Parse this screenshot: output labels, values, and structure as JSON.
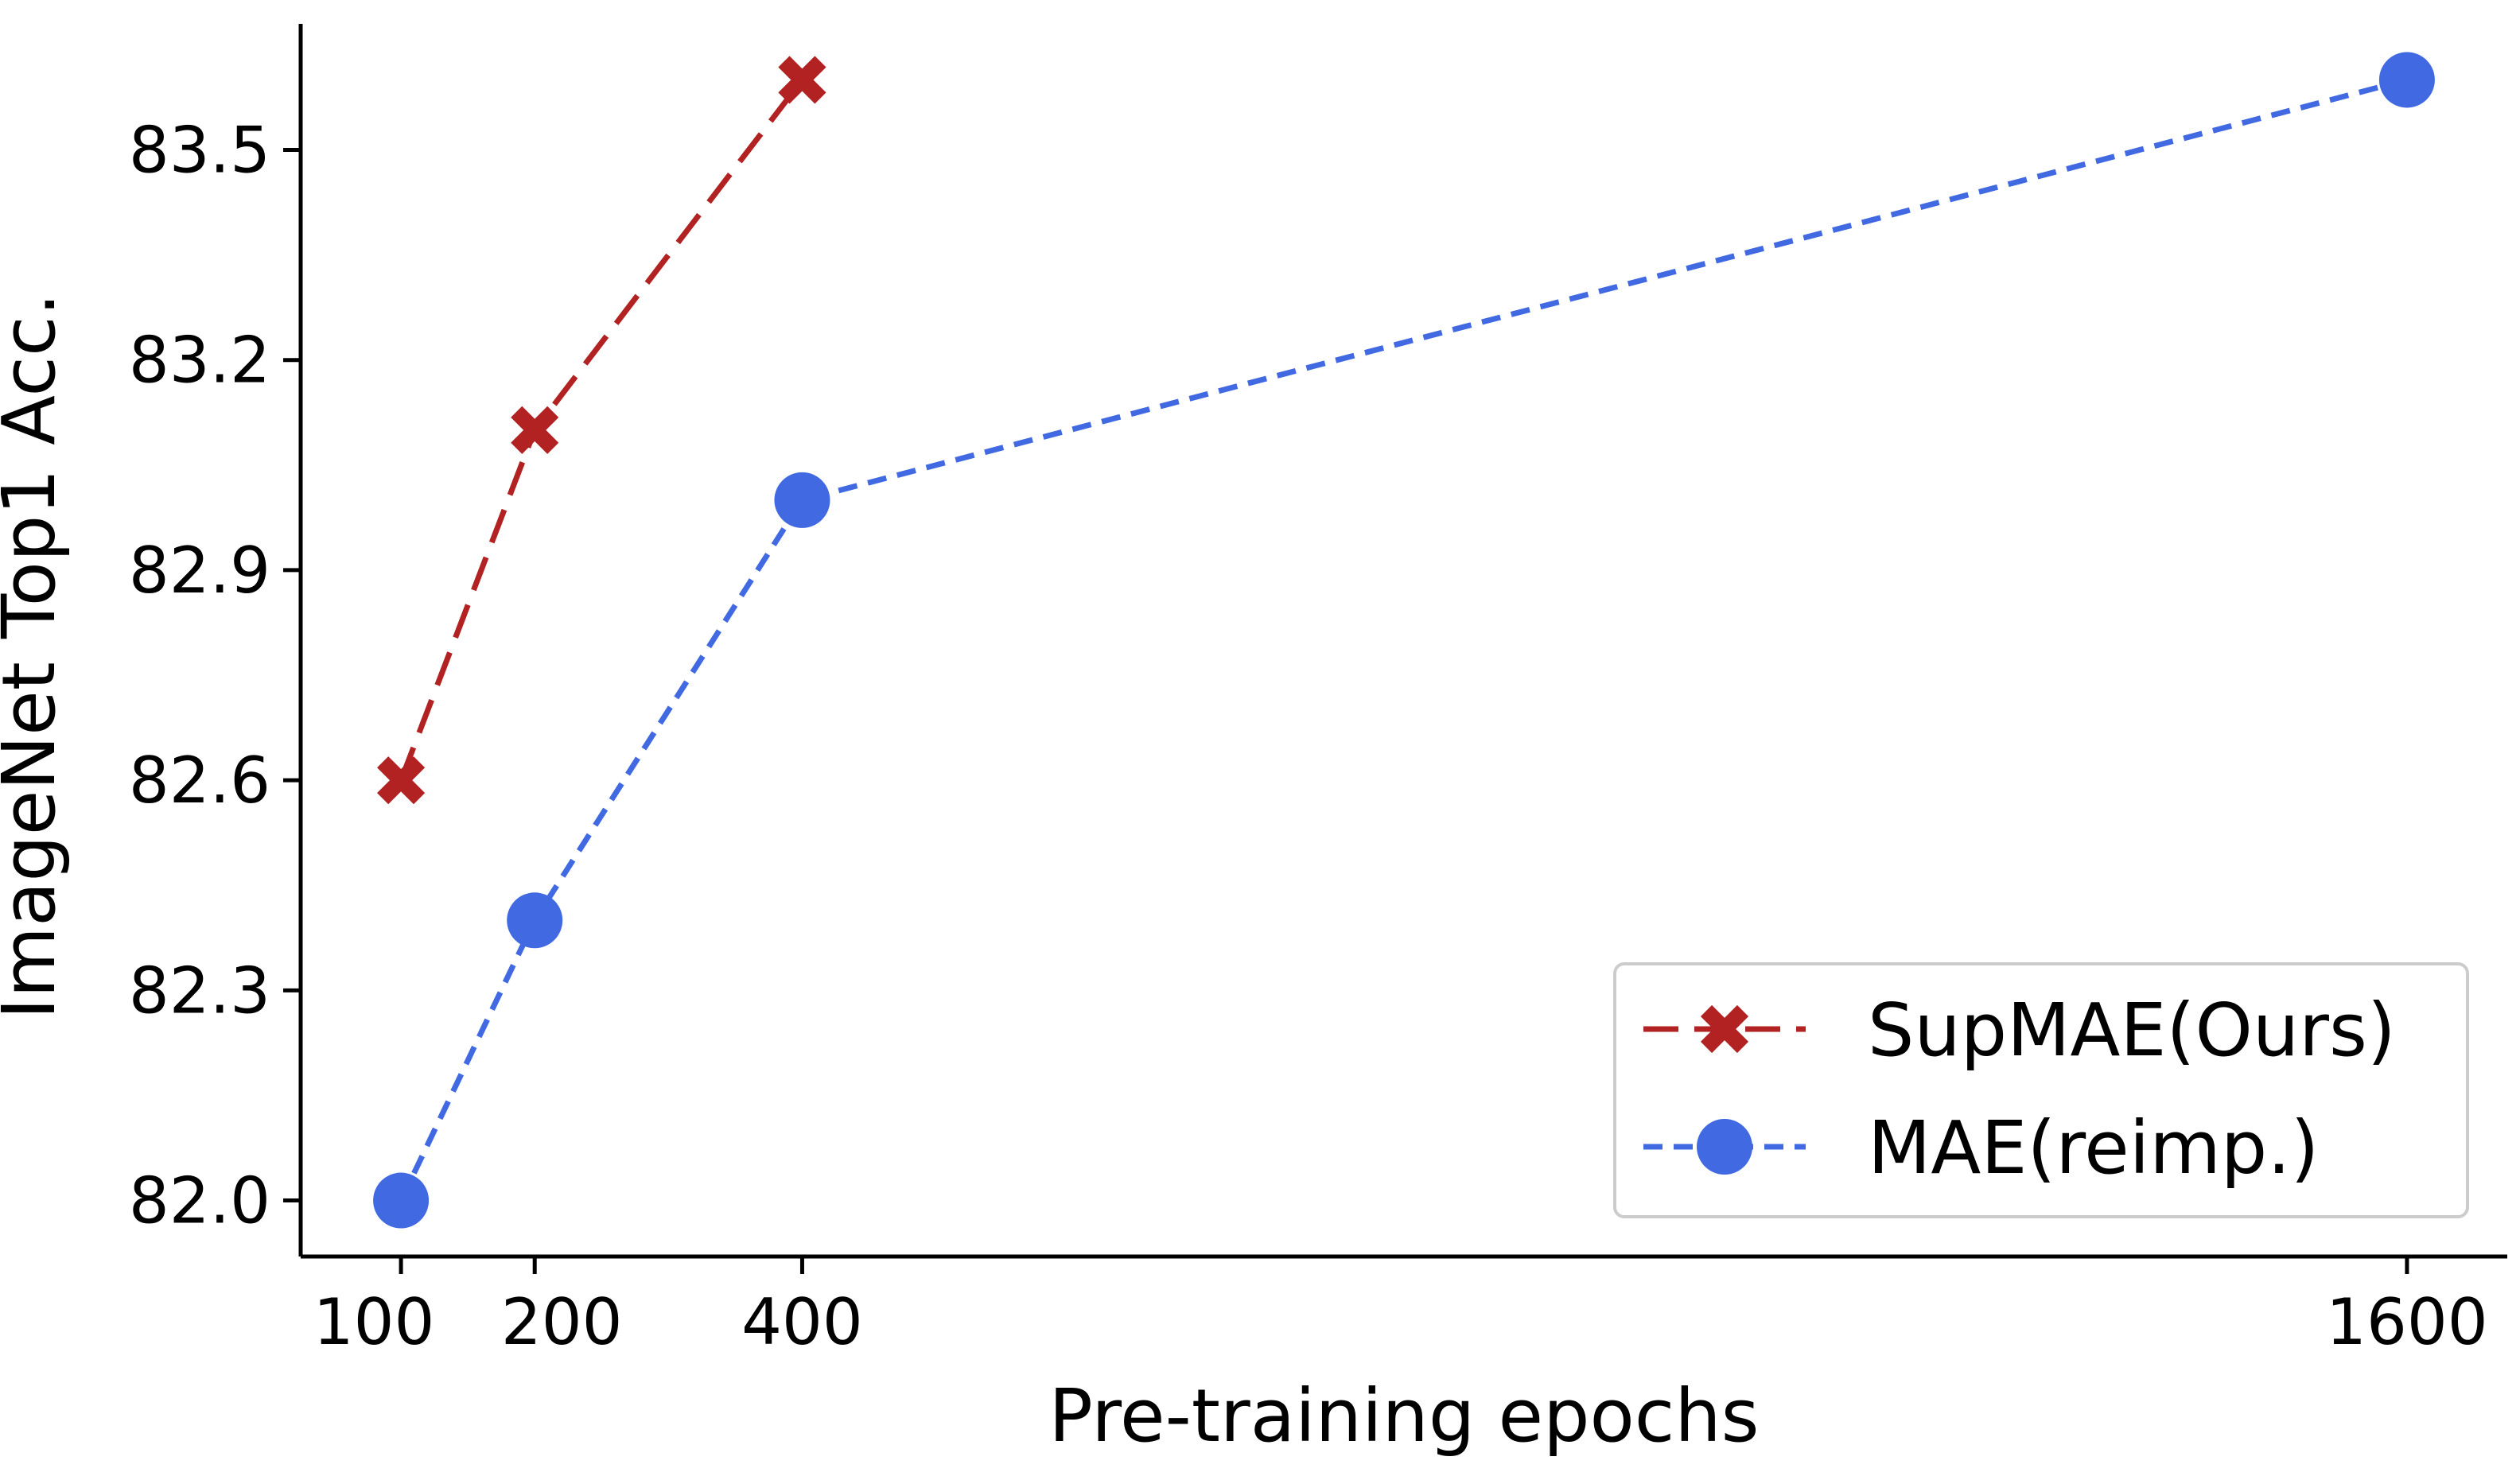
{
  "chart_data": {
    "type": "line",
    "title": "",
    "xlabel": "Pre-training epochs",
    "ylabel": "ImageNet Top1 Acc.",
    "x_ticks": [
      100,
      200,
      400,
      1600
    ],
    "x_tick_labels": [
      "100",
      "200",
      "400",
      "1600"
    ],
    "y_ticks": [
      82.0,
      82.3,
      82.6,
      82.9,
      83.2,
      83.5
    ],
    "y_tick_labels": [
      "82.0",
      "82.3",
      "82.6",
      "82.9",
      "83.2",
      "83.5"
    ],
    "xlim": [
      25,
      1675
    ],
    "ylim": [
      81.92,
      83.68
    ],
    "legend_position": "lower-right",
    "series": [
      {
        "name": "SupMAE(Ours)",
        "x": [
          100,
          200,
          400
        ],
        "values": [
          82.6,
          83.1,
          83.6
        ],
        "color": "#b22222",
        "line_style": "long-dash",
        "marker": "x-marker"
      },
      {
        "name": "MAE(reimp.)",
        "x": [
          100,
          200,
          400,
          1600
        ],
        "values": [
          82.0,
          82.4,
          83.0,
          83.6
        ],
        "color": "#4169e1",
        "line_style": "short-dash",
        "marker": "circle-marker"
      }
    ]
  }
}
